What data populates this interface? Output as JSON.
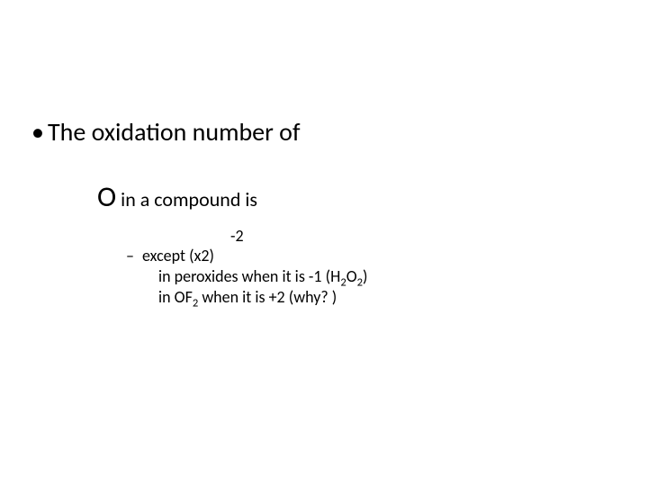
{
  "slide": {
    "background_color": "#ffffff",
    "text_color": "#000000",
    "font_family": "Calibri",
    "bullet1": {
      "marker": "•",
      "text": "The oxidation number of",
      "font_size": 28
    },
    "line2": {
      "big_letter": "O",
      "rest": " in a compound is",
      "big_font_size": 32,
      "rest_font_size": 22
    },
    "line3": {
      "text": "-2",
      "font_size": 18
    },
    "line4": {
      "marker": "–",
      "text": "except (x2)",
      "font_size": 18
    },
    "line5": {
      "prefix": "in peroxides when it is -1 (H",
      "sub1": "2",
      "mid": "O",
      "sub2": "2",
      "suffix": ")",
      "font_size": 18
    },
    "line6": {
      "prefix": "in OF",
      "sub1": "2",
      "suffix": " when it is +2 (why? )",
      "font_size": 18
    }
  }
}
